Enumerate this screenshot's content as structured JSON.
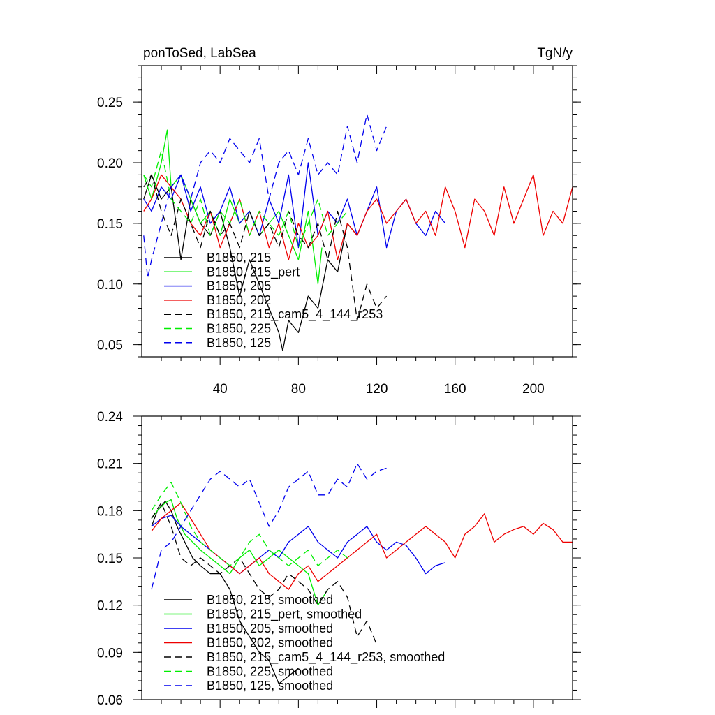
{
  "chart_data": [
    {
      "type": "line",
      "title": "ponToSed, LabSea",
      "units": "TgN/y",
      "xlim": [
        0,
        220
      ],
      "ylim": [
        0.04,
        0.28
      ],
      "xticks": [
        40,
        80,
        120,
        160,
        200
      ],
      "xtick_labels": [
        "40",
        "80",
        "120",
        "160",
        "200"
      ],
      "yticks": [
        0.05,
        0.1,
        0.15,
        0.2,
        0.25
      ],
      "ytick_labels": [
        "0.05",
        "0.10",
        "0.15",
        "0.20",
        "0.25"
      ],
      "legend_position": "bottom-left",
      "series": [
        {
          "name": "B1850, 215",
          "color": "#000000",
          "dash": "solid",
          "x": [
            1,
            5,
            10,
            15,
            20,
            25,
            30,
            35,
            40,
            45,
            50,
            55,
            60,
            65,
            70,
            72,
            75,
            80,
            85,
            90,
            95,
            100,
            105,
            110
          ],
          "y": [
            0.17,
            0.19,
            0.17,
            0.18,
            0.12,
            0.17,
            0.15,
            0.14,
            0.16,
            0.13,
            0.09,
            0.12,
            0.1,
            0.08,
            0.06,
            0.045,
            0.07,
            0.06,
            0.09,
            0.08,
            0.12,
            0.11,
            0.15,
            0.14
          ]
        },
        {
          "name": "B1850, 215_pert",
          "color": "#00ee00",
          "dash": "solid",
          "x": [
            1,
            5,
            10,
            13,
            15,
            20,
            25,
            30,
            35,
            40,
            45,
            50,
            55,
            60,
            65,
            70,
            75,
            80,
            85,
            90,
            92
          ],
          "y": [
            0.19,
            0.17,
            0.2,
            0.227,
            0.18,
            0.19,
            0.17,
            0.15,
            0.16,
            0.14,
            0.17,
            0.15,
            0.16,
            0.14,
            0.15,
            0.16,
            0.14,
            0.12,
            0.16,
            0.1,
            0.13
          ]
        },
        {
          "name": "B1850, 205",
          "color": "#0000ee",
          "dash": "solid",
          "x": [
            1,
            5,
            10,
            15,
            20,
            25,
            30,
            35,
            40,
            45,
            50,
            55,
            60,
            65,
            70,
            75,
            80,
            85,
            90,
            95,
            100,
            105,
            110,
            115,
            120,
            125,
            130,
            135,
            140,
            145,
            150,
            155
          ],
          "y": [
            0.17,
            0.16,
            0.18,
            0.17,
            0.19,
            0.16,
            0.18,
            0.15,
            0.16,
            0.18,
            0.15,
            0.16,
            0.14,
            0.17,
            0.15,
            0.19,
            0.13,
            0.2,
            0.14,
            0.16,
            0.15,
            0.17,
            0.14,
            0.16,
            0.18,
            0.13,
            0.16,
            0.17,
            0.15,
            0.14,
            0.16,
            0.15
          ]
        },
        {
          "name": "B1850, 202",
          "color": "#ee0000",
          "dash": "solid",
          "x": [
            1,
            5,
            10,
            15,
            20,
            25,
            30,
            35,
            40,
            45,
            50,
            55,
            60,
            65,
            70,
            75,
            80,
            85,
            90,
            95,
            100,
            105,
            110,
            115,
            120,
            125,
            130,
            135,
            140,
            145,
            150,
            155,
            160,
            165,
            170,
            175,
            180,
            185,
            190,
            195,
            200,
            205,
            210,
            215,
            220
          ],
          "y": [
            0.16,
            0.17,
            0.19,
            0.18,
            0.17,
            0.15,
            0.14,
            0.16,
            0.13,
            0.15,
            0.17,
            0.14,
            0.16,
            0.13,
            0.15,
            0.12,
            0.15,
            0.13,
            0.14,
            0.16,
            0.12,
            0.15,
            0.14,
            0.16,
            0.17,
            0.15,
            0.16,
            0.17,
            0.15,
            0.16,
            0.14,
            0.18,
            0.16,
            0.13,
            0.17,
            0.16,
            0.14,
            0.18,
            0.15,
            0.17,
            0.19,
            0.14,
            0.16,
            0.15,
            0.18
          ]
        },
        {
          "name": "B1850, 215_cam5_4_144_r253",
          "color": "#000000",
          "dash": "dashed",
          "x": [
            1,
            5,
            10,
            15,
            20,
            25,
            30,
            35,
            40,
            45,
            50,
            55,
            60,
            65,
            70,
            75,
            80,
            85,
            90,
            95,
            100,
            105,
            110,
            115,
            120,
            125
          ],
          "y": [
            0.18,
            0.19,
            0.16,
            0.14,
            0.17,
            0.15,
            0.13,
            0.16,
            0.14,
            0.15,
            0.13,
            0.16,
            0.14,
            0.15,
            0.13,
            0.16,
            0.14,
            0.13,
            0.15,
            0.12,
            0.16,
            0.13,
            0.07,
            0.1,
            0.08,
            0.09
          ]
        },
        {
          "name": "B1850, 225",
          "color": "#00ee00",
          "dash": "dashed",
          "x": [
            1,
            5,
            10,
            15,
            20,
            25,
            30,
            35,
            40,
            45,
            50,
            55,
            60,
            65,
            70,
            75,
            80,
            85,
            90,
            95,
            100,
            105
          ],
          "y": [
            0.19,
            0.18,
            0.21,
            0.17,
            0.16,
            0.15,
            0.17,
            0.14,
            0.16,
            0.15,
            0.17,
            0.14,
            0.16,
            0.15,
            0.14,
            0.16,
            0.13,
            0.15,
            0.17,
            0.14,
            0.15,
            0.16
          ]
        },
        {
          "name": "B1850, 125",
          "color": "#0000ee",
          "dash": "dashed",
          "x": [
            1,
            3,
            5,
            10,
            15,
            20,
            25,
            30,
            35,
            40,
            45,
            50,
            55,
            60,
            65,
            70,
            75,
            80,
            85,
            90,
            95,
            100,
            105,
            110,
            115,
            120,
            125
          ],
          "y": [
            0.14,
            0.105,
            0.12,
            0.15,
            0.18,
            0.19,
            0.17,
            0.2,
            0.21,
            0.2,
            0.22,
            0.21,
            0.2,
            0.22,
            0.17,
            0.2,
            0.21,
            0.19,
            0.22,
            0.19,
            0.2,
            0.19,
            0.23,
            0.2,
            0.24,
            0.21,
            0.23
          ]
        }
      ]
    },
    {
      "type": "line",
      "xlim": [
        0,
        220
      ],
      "ylim": [
        0.06,
        0.24
      ],
      "xticks": [
        40,
        80,
        120,
        160,
        200
      ],
      "yticks": [
        0.06,
        0.09,
        0.12,
        0.15,
        0.18,
        0.21,
        0.24
      ],
      "ytick_labels": [
        "0.06",
        "0.09",
        "0.12",
        "0.15",
        "0.18",
        "0.21",
        "0.24"
      ],
      "legend_position": "bottom-left",
      "series": [
        {
          "name": "B1850, 215, smoothed",
          "color": "#000000",
          "dash": "solid",
          "x": [
            5,
            8,
            12,
            15,
            18,
            22,
            26,
            30,
            35,
            40,
            45,
            50,
            55,
            60,
            65,
            70,
            75,
            80
          ],
          "y": [
            0.17,
            0.18,
            0.186,
            0.18,
            0.17,
            0.16,
            0.15,
            0.145,
            0.14,
            0.14,
            0.13,
            0.11,
            0.1,
            0.09,
            0.085,
            0.07,
            0.075,
            0.08
          ]
        },
        {
          "name": "B1850, 215_pert, smoothed",
          "color": "#00ee00",
          "dash": "solid",
          "x": [
            5,
            8,
            12,
            15,
            18,
            22,
            26,
            30,
            35,
            40,
            45,
            50,
            55,
            60,
            65,
            70,
            75,
            80,
            85,
            90,
            95
          ],
          "y": [
            0.175,
            0.18,
            0.185,
            0.187,
            0.175,
            0.165,
            0.16,
            0.155,
            0.15,
            0.145,
            0.14,
            0.15,
            0.155,
            0.145,
            0.15,
            0.155,
            0.15,
            0.145,
            0.14,
            0.12,
            0.13
          ]
        },
        {
          "name": "B1850, 205, smoothed",
          "color": "#0000ee",
          "dash": "solid",
          "x": [
            5,
            10,
            15,
            20,
            25,
            30,
            35,
            40,
            45,
            50,
            55,
            60,
            65,
            70,
            75,
            80,
            85,
            90,
            95,
            100,
            105,
            110,
            115,
            120,
            125,
            130,
            135,
            140,
            145,
            150,
            155
          ],
          "y": [
            0.17,
            0.175,
            0.177,
            0.17,
            0.165,
            0.16,
            0.155,
            0.15,
            0.145,
            0.14,
            0.145,
            0.15,
            0.155,
            0.15,
            0.16,
            0.165,
            0.17,
            0.16,
            0.155,
            0.15,
            0.16,
            0.165,
            0.17,
            0.16,
            0.155,
            0.16,
            0.158,
            0.15,
            0.14,
            0.145,
            0.147
          ]
        },
        {
          "name": "B1850, 202, smoothed",
          "color": "#ee0000",
          "dash": "solid",
          "x": [
            5,
            10,
            15,
            20,
            25,
            30,
            35,
            40,
            45,
            50,
            55,
            60,
            65,
            70,
            75,
            80,
            85,
            90,
            95,
            100,
            105,
            110,
            115,
            120,
            125,
            130,
            135,
            140,
            145,
            150,
            155,
            160,
            165,
            170,
            175,
            180,
            185,
            190,
            195,
            200,
            205,
            210,
            215,
            220
          ],
          "y": [
            0.167,
            0.175,
            0.18,
            0.185,
            0.175,
            0.165,
            0.155,
            0.15,
            0.145,
            0.14,
            0.145,
            0.15,
            0.14,
            0.135,
            0.13,
            0.14,
            0.145,
            0.135,
            0.14,
            0.145,
            0.15,
            0.155,
            0.16,
            0.165,
            0.15,
            0.155,
            0.16,
            0.165,
            0.17,
            0.165,
            0.16,
            0.15,
            0.165,
            0.17,
            0.178,
            0.16,
            0.165,
            0.168,
            0.17,
            0.165,
            0.172,
            0.168,
            0.16,
            0.16
          ]
        },
        {
          "name": "B1850, 215_cam5_4_144_r253, smoothed",
          "color": "#000000",
          "dash": "dashed",
          "x": [
            5,
            10,
            15,
            20,
            25,
            30,
            35,
            40,
            45,
            50,
            55,
            60,
            65,
            70,
            75,
            80,
            85,
            90,
            95,
            100,
            105,
            110,
            115,
            120
          ],
          "y": [
            0.175,
            0.185,
            0.17,
            0.15,
            0.145,
            0.15,
            0.145,
            0.14,
            0.145,
            0.15,
            0.14,
            0.13,
            0.125,
            0.13,
            0.14,
            0.135,
            0.13,
            0.12,
            0.13,
            0.135,
            0.125,
            0.1,
            0.11,
            0.095
          ]
        },
        {
          "name": "B1850, 225, smoothed",
          "color": "#00ee00",
          "dash": "dashed",
          "x": [
            5,
            10,
            15,
            20,
            25,
            30,
            35,
            40,
            45,
            50,
            55,
            60,
            65,
            70,
            75,
            80,
            85,
            90,
            95,
            100,
            105
          ],
          "y": [
            0.18,
            0.19,
            0.198,
            0.185,
            0.17,
            0.16,
            0.155,
            0.15,
            0.145,
            0.15,
            0.16,
            0.165,
            0.155,
            0.15,
            0.145,
            0.15,
            0.155,
            0.145,
            0.15,
            0.155,
            0.15
          ]
        },
        {
          "name": "B1850, 125, smoothed",
          "color": "#0000ee",
          "dash": "dashed",
          "x": [
            5,
            10,
            15,
            20,
            25,
            30,
            35,
            40,
            45,
            50,
            55,
            60,
            65,
            70,
            75,
            80,
            85,
            90,
            95,
            100,
            105,
            110,
            115,
            120,
            125
          ],
          "y": [
            0.13,
            0.155,
            0.16,
            0.17,
            0.18,
            0.19,
            0.2,
            0.205,
            0.2,
            0.195,
            0.2,
            0.185,
            0.17,
            0.18,
            0.195,
            0.2,
            0.205,
            0.19,
            0.19,
            0.2,
            0.195,
            0.21,
            0.2,
            0.205,
            0.207
          ]
        }
      ]
    }
  ]
}
